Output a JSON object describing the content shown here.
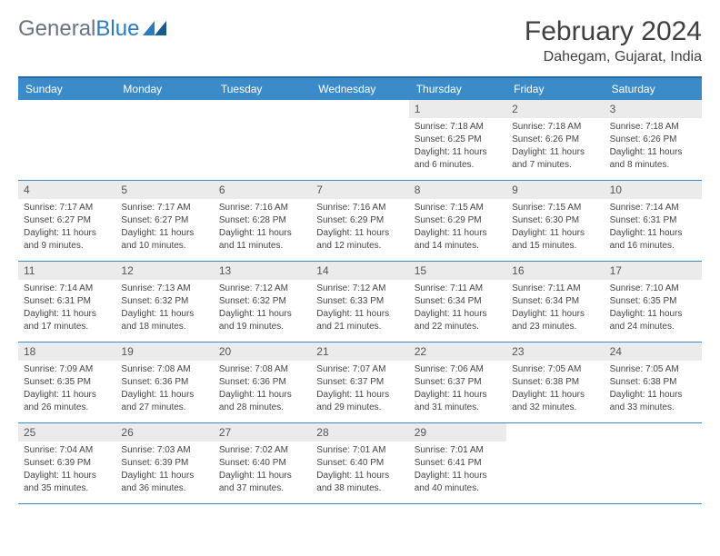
{
  "logo": {
    "part1": "General",
    "part2": "Blue"
  },
  "title": "February 2024",
  "location": "Dahegam, Gujarat, India",
  "colors": {
    "header_bg": "#3b8bc9",
    "header_border": "#2b6a9e",
    "row_border": "#3b8bc9",
    "daynum_bg": "#ebebeb",
    "logo_gray": "#6b7280",
    "logo_blue": "#2b7bbf"
  },
  "day_names": [
    "Sunday",
    "Monday",
    "Tuesday",
    "Wednesday",
    "Thursday",
    "Friday",
    "Saturday"
  ],
  "weeks": [
    [
      {
        "n": "",
        "sr": "",
        "ss": "",
        "dl": ""
      },
      {
        "n": "",
        "sr": "",
        "ss": "",
        "dl": ""
      },
      {
        "n": "",
        "sr": "",
        "ss": "",
        "dl": ""
      },
      {
        "n": "",
        "sr": "",
        "ss": "",
        "dl": ""
      },
      {
        "n": "1",
        "sr": "Sunrise: 7:18 AM",
        "ss": "Sunset: 6:25 PM",
        "dl": "Daylight: 11 hours and 6 minutes."
      },
      {
        "n": "2",
        "sr": "Sunrise: 7:18 AM",
        "ss": "Sunset: 6:26 PM",
        "dl": "Daylight: 11 hours and 7 minutes."
      },
      {
        "n": "3",
        "sr": "Sunrise: 7:18 AM",
        "ss": "Sunset: 6:26 PM",
        "dl": "Daylight: 11 hours and 8 minutes."
      }
    ],
    [
      {
        "n": "4",
        "sr": "Sunrise: 7:17 AM",
        "ss": "Sunset: 6:27 PM",
        "dl": "Daylight: 11 hours and 9 minutes."
      },
      {
        "n": "5",
        "sr": "Sunrise: 7:17 AM",
        "ss": "Sunset: 6:27 PM",
        "dl": "Daylight: 11 hours and 10 minutes."
      },
      {
        "n": "6",
        "sr": "Sunrise: 7:16 AM",
        "ss": "Sunset: 6:28 PM",
        "dl": "Daylight: 11 hours and 11 minutes."
      },
      {
        "n": "7",
        "sr": "Sunrise: 7:16 AM",
        "ss": "Sunset: 6:29 PM",
        "dl": "Daylight: 11 hours and 12 minutes."
      },
      {
        "n": "8",
        "sr": "Sunrise: 7:15 AM",
        "ss": "Sunset: 6:29 PM",
        "dl": "Daylight: 11 hours and 14 minutes."
      },
      {
        "n": "9",
        "sr": "Sunrise: 7:15 AM",
        "ss": "Sunset: 6:30 PM",
        "dl": "Daylight: 11 hours and 15 minutes."
      },
      {
        "n": "10",
        "sr": "Sunrise: 7:14 AM",
        "ss": "Sunset: 6:31 PM",
        "dl": "Daylight: 11 hours and 16 minutes."
      }
    ],
    [
      {
        "n": "11",
        "sr": "Sunrise: 7:14 AM",
        "ss": "Sunset: 6:31 PM",
        "dl": "Daylight: 11 hours and 17 minutes."
      },
      {
        "n": "12",
        "sr": "Sunrise: 7:13 AM",
        "ss": "Sunset: 6:32 PM",
        "dl": "Daylight: 11 hours and 18 minutes."
      },
      {
        "n": "13",
        "sr": "Sunrise: 7:12 AM",
        "ss": "Sunset: 6:32 PM",
        "dl": "Daylight: 11 hours and 19 minutes."
      },
      {
        "n": "14",
        "sr": "Sunrise: 7:12 AM",
        "ss": "Sunset: 6:33 PM",
        "dl": "Daylight: 11 hours and 21 minutes."
      },
      {
        "n": "15",
        "sr": "Sunrise: 7:11 AM",
        "ss": "Sunset: 6:34 PM",
        "dl": "Daylight: 11 hours and 22 minutes."
      },
      {
        "n": "16",
        "sr": "Sunrise: 7:11 AM",
        "ss": "Sunset: 6:34 PM",
        "dl": "Daylight: 11 hours and 23 minutes."
      },
      {
        "n": "17",
        "sr": "Sunrise: 7:10 AM",
        "ss": "Sunset: 6:35 PM",
        "dl": "Daylight: 11 hours and 24 minutes."
      }
    ],
    [
      {
        "n": "18",
        "sr": "Sunrise: 7:09 AM",
        "ss": "Sunset: 6:35 PM",
        "dl": "Daylight: 11 hours and 26 minutes."
      },
      {
        "n": "19",
        "sr": "Sunrise: 7:08 AM",
        "ss": "Sunset: 6:36 PM",
        "dl": "Daylight: 11 hours and 27 minutes."
      },
      {
        "n": "20",
        "sr": "Sunrise: 7:08 AM",
        "ss": "Sunset: 6:36 PM",
        "dl": "Daylight: 11 hours and 28 minutes."
      },
      {
        "n": "21",
        "sr": "Sunrise: 7:07 AM",
        "ss": "Sunset: 6:37 PM",
        "dl": "Daylight: 11 hours and 29 minutes."
      },
      {
        "n": "22",
        "sr": "Sunrise: 7:06 AM",
        "ss": "Sunset: 6:37 PM",
        "dl": "Daylight: 11 hours and 31 minutes."
      },
      {
        "n": "23",
        "sr": "Sunrise: 7:05 AM",
        "ss": "Sunset: 6:38 PM",
        "dl": "Daylight: 11 hours and 32 minutes."
      },
      {
        "n": "24",
        "sr": "Sunrise: 7:05 AM",
        "ss": "Sunset: 6:38 PM",
        "dl": "Daylight: 11 hours and 33 minutes."
      }
    ],
    [
      {
        "n": "25",
        "sr": "Sunrise: 7:04 AM",
        "ss": "Sunset: 6:39 PM",
        "dl": "Daylight: 11 hours and 35 minutes."
      },
      {
        "n": "26",
        "sr": "Sunrise: 7:03 AM",
        "ss": "Sunset: 6:39 PM",
        "dl": "Daylight: 11 hours and 36 minutes."
      },
      {
        "n": "27",
        "sr": "Sunrise: 7:02 AM",
        "ss": "Sunset: 6:40 PM",
        "dl": "Daylight: 11 hours and 37 minutes."
      },
      {
        "n": "28",
        "sr": "Sunrise: 7:01 AM",
        "ss": "Sunset: 6:40 PM",
        "dl": "Daylight: 11 hours and 38 minutes."
      },
      {
        "n": "29",
        "sr": "Sunrise: 7:01 AM",
        "ss": "Sunset: 6:41 PM",
        "dl": "Daylight: 11 hours and 40 minutes."
      },
      {
        "n": "",
        "sr": "",
        "ss": "",
        "dl": ""
      },
      {
        "n": "",
        "sr": "",
        "ss": "",
        "dl": ""
      }
    ]
  ]
}
